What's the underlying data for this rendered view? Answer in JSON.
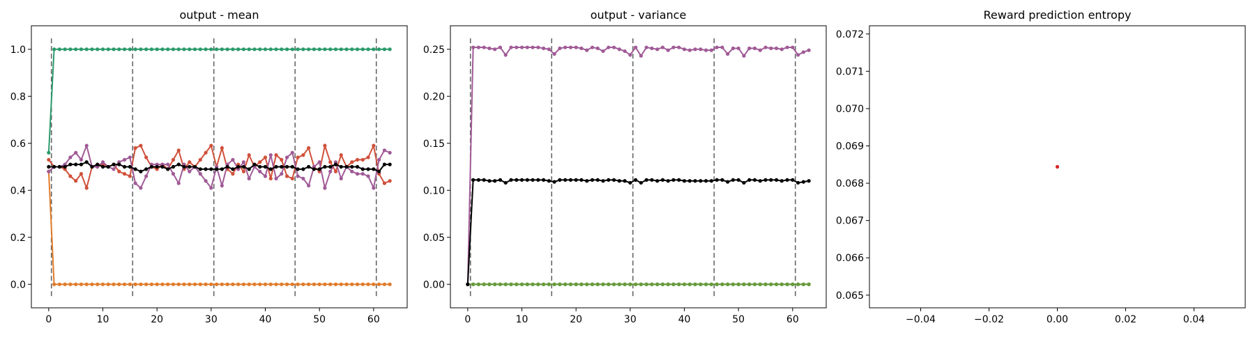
{
  "panels": [
    {
      "title": "output - mean",
      "chart_data": {
        "type": "line",
        "title": "output - mean",
        "xlabel": "",
        "ylabel": "",
        "xlim": [
          -3.2,
          66.2
        ],
        "ylim": [
          -0.1,
          1.1
        ],
        "xticks": [
          0,
          10,
          20,
          30,
          40,
          50,
          60
        ],
        "yticks": [
          0.0,
          0.2,
          0.4,
          0.6,
          0.8,
          1.0
        ],
        "ytick_labels": [
          "0.0",
          "0.2",
          "0.4",
          "0.6",
          "0.8",
          "1.0"
        ],
        "vlines": {
          "x": [
            0.5,
            15.5,
            30.5,
            45.5,
            60.5
          ],
          "y_range": [
            -0.05,
            1.05
          ],
          "color": "#666666",
          "style": "dashed"
        },
        "series": [
          {
            "color": "#2a9a6a",
            "values": [
              0.56,
              1,
              1,
              1,
              1,
              1,
              1,
              1,
              1,
              1,
              1,
              1,
              1,
              1,
              1,
              1,
              1,
              1,
              1,
              1,
              1,
              1,
              1,
              1,
              1,
              1,
              1,
              1,
              1,
              1,
              1,
              1,
              1,
              1,
              1,
              1,
              1,
              1,
              1,
              1,
              1,
              1,
              1,
              1,
              1,
              1,
              1,
              1,
              1,
              1,
              1,
              1,
              1,
              1,
              1,
              1,
              1,
              1,
              1,
              1,
              1,
              1,
              1,
              1
            ]
          },
          {
            "color": "#e07b2a",
            "values": [
              0.48,
              0,
              0,
              0,
              0,
              0,
              0,
              0,
              0,
              0,
              0,
              0,
              0,
              0,
              0,
              0,
              0,
              0,
              0,
              0,
              0,
              0,
              0,
              0,
              0,
              0,
              0,
              0,
              0,
              0,
              0,
              0,
              0,
              0,
              0,
              0,
              0,
              0,
              0,
              0,
              0,
              0,
              0,
              0,
              0,
              0,
              0,
              0,
              0,
              0,
              0,
              0,
              0,
              0,
              0,
              0,
              0,
              0,
              0,
              0,
              0,
              0,
              0,
              0
            ]
          },
          {
            "color": "#d0503a",
            "values": [
              0.53,
              0.5,
              0.5,
              0.49,
              0.46,
              0.44,
              0.47,
              0.41,
              0.5,
              0.5,
              0.51,
              0.5,
              0.51,
              0.48,
              0.47,
              0.46,
              0.58,
              0.59,
              0.54,
              0.5,
              0.49,
              0.51,
              0.49,
              0.53,
              0.57,
              0.49,
              0.52,
              0.5,
              0.53,
              0.56,
              0.59,
              0.5,
              0.58,
              0.49,
              0.47,
              0.51,
              0.48,
              0.55,
              0.5,
              0.52,
              0.54,
              0.45,
              0.55,
              0.53,
              0.46,
              0.45,
              0.54,
              0.55,
              0.58,
              0.5,
              0.48,
              0.59,
              0.52,
              0.48,
              0.55,
              0.5,
              0.52,
              0.53,
              0.53,
              0.54,
              0.59,
              0.47,
              0.43,
              0.44
            ]
          },
          {
            "color": "#a05a96",
            "values": [
              0.48,
              0.5,
              0.5,
              0.51,
              0.54,
              0.56,
              0.53,
              0.59,
              0.5,
              0.5,
              0.52,
              0.5,
              0.49,
              0.52,
              0.53,
              0.54,
              0.43,
              0.41,
              0.46,
              0.51,
              0.51,
              0.51,
              0.51,
              0.47,
              0.43,
              0.51,
              0.48,
              0.5,
              0.47,
              0.44,
              0.41,
              0.5,
              0.42,
              0.51,
              0.53,
              0.49,
              0.52,
              0.45,
              0.5,
              0.48,
              0.46,
              0.55,
              0.45,
              0.47,
              0.54,
              0.56,
              0.46,
              0.45,
              0.42,
              0.5,
              0.52,
              0.41,
              0.48,
              0.52,
              0.45,
              0.5,
              0.48,
              0.47,
              0.47,
              0.46,
              0.41,
              0.53,
              0.57,
              0.56
            ]
          },
          {
            "color": "#000000",
            "values": [
              0.5,
              0.5,
              0.5,
              0.5,
              0.51,
              0.51,
              0.51,
              0.52,
              0.5,
              0.51,
              0.5,
              0.5,
              0.51,
              0.51,
              0.5,
              0.5,
              0.49,
              0.48,
              0.49,
              0.5,
              0.5,
              0.5,
              0.49,
              0.5,
              0.51,
              0.5,
              0.5,
              0.5,
              0.49,
              0.49,
              0.49,
              0.49,
              0.49,
              0.5,
              0.49,
              0.5,
              0.5,
              0.49,
              0.51,
              0.5,
              0.5,
              0.49,
              0.5,
              0.5,
              0.5,
              0.5,
              0.49,
              0.49,
              0.5,
              0.49,
              0.49,
              0.5,
              0.5,
              0.51,
              0.5,
              0.5,
              0.5,
              0.5,
              0.49,
              0.49,
              0.49,
              0.48,
              0.51,
              0.51
            ]
          }
        ]
      }
    },
    {
      "title": "output - variance",
      "chart_data": {
        "type": "line",
        "title": "output - variance",
        "xlabel": "",
        "ylabel": "",
        "xlim": [
          -3.2,
          66.2
        ],
        "ylim": [
          -0.025,
          0.275
        ],
        "xticks": [
          0,
          10,
          20,
          30,
          40,
          50,
          60
        ],
        "yticks": [
          0.0,
          0.05,
          0.1,
          0.15,
          0.2,
          0.25
        ],
        "ytick_labels": [
          "0.00",
          "0.05",
          "0.10",
          "0.15",
          "0.20",
          "0.25"
        ],
        "vlines": {
          "x": [
            0.5,
            15.5,
            30.5,
            45.5,
            60.5
          ],
          "y_range": [
            -0.0125,
            0.2625
          ],
          "color": "#666666",
          "style": "dashed"
        },
        "series": [
          {
            "color": "#2a9a6a",
            "values": [
              0,
              0,
              0,
              0,
              0,
              0,
              0,
              0,
              0,
              0,
              0,
              0,
              0,
              0,
              0,
              0,
              0,
              0,
              0,
              0,
              0,
              0,
              0,
              0,
              0,
              0,
              0,
              0,
              0,
              0,
              0,
              0,
              0,
              0,
              0,
              0,
              0,
              0,
              0,
              0,
              0,
              0,
              0,
              0,
              0,
              0,
              0,
              0,
              0,
              0,
              0,
              0,
              0,
              0,
              0,
              0,
              0,
              0,
              0,
              0,
              0,
              0,
              0,
              0
            ]
          },
          {
            "color": "#6a9a3a",
            "values": [
              0,
              0,
              0,
              0,
              0,
              0,
              0,
              0,
              0,
              0,
              0,
              0,
              0,
              0,
              0,
              0,
              0,
              0,
              0,
              0,
              0,
              0,
              0,
              0,
              0,
              0,
              0,
              0,
              0,
              0,
              0,
              0,
              0,
              0,
              0,
              0,
              0,
              0,
              0,
              0,
              0,
              0,
              0,
              0,
              0,
              0,
              0,
              0,
              0,
              0,
              0,
              0,
              0,
              0,
              0,
              0,
              0,
              0,
              0,
              0,
              0,
              0,
              0,
              0
            ]
          },
          {
            "color": "#a05a96",
            "values": [
              0.0,
              0.252,
              0.252,
              0.252,
              0.251,
              0.25,
              0.252,
              0.244,
              0.252,
              0.252,
              0.252,
              0.252,
              0.252,
              0.252,
              0.251,
              0.25,
              0.245,
              0.251,
              0.252,
              0.252,
              0.252,
              0.251,
              0.249,
              0.252,
              0.251,
              0.248,
              0.252,
              0.252,
              0.25,
              0.248,
              0.244,
              0.252,
              0.243,
              0.252,
              0.251,
              0.25,
              0.252,
              0.249,
              0.252,
              0.252,
              0.25,
              0.249,
              0.25,
              0.25,
              0.249,
              0.249,
              0.252,
              0.252,
              0.245,
              0.251,
              0.251,
              0.243,
              0.251,
              0.251,
              0.249,
              0.252,
              0.251,
              0.251,
              0.25,
              0.252,
              0.252,
              0.244,
              0.247,
              0.249
            ]
          },
          {
            "color": "#000000",
            "values": [
              0.0,
              0.111,
              0.111,
              0.111,
              0.11,
              0.11,
              0.111,
              0.108,
              0.111,
              0.111,
              0.111,
              0.111,
              0.111,
              0.111,
              0.111,
              0.11,
              0.109,
              0.111,
              0.111,
              0.111,
              0.111,
              0.111,
              0.11,
              0.111,
              0.111,
              0.11,
              0.111,
              0.111,
              0.11,
              0.11,
              0.108,
              0.111,
              0.108,
              0.111,
              0.111,
              0.11,
              0.111,
              0.11,
              0.111,
              0.111,
              0.11,
              0.11,
              0.11,
              0.11,
              0.11,
              0.11,
              0.111,
              0.111,
              0.109,
              0.111,
              0.111,
              0.108,
              0.111,
              0.111,
              0.11,
              0.111,
              0.111,
              0.111,
              0.11,
              0.111,
              0.111,
              0.108,
              0.109,
              0.11
            ]
          }
        ]
      }
    },
    {
      "title": "Reward prediction entropy",
      "chart_data": {
        "type": "scatter",
        "title": "Reward prediction entropy",
        "xlabel": "",
        "ylabel": "",
        "xlim": [
          -0.055,
          0.055
        ],
        "ylim": [
          0.06466,
          0.07222
        ],
        "xticks": [
          -0.04,
          -0.02,
          0.0,
          0.02,
          0.04
        ],
        "xtick_labels": [
          "−0.04",
          "−0.02",
          "0.00",
          "0.02",
          "0.04"
        ],
        "yticks": [
          0.065,
          0.066,
          0.067,
          0.068,
          0.069,
          0.07,
          0.071,
          0.072
        ],
        "ytick_labels": [
          "0.065",
          "0.066",
          "0.067",
          "0.068",
          "0.069",
          "0.070",
          "0.071",
          "0.072"
        ],
        "series": [
          {
            "color": "#d62728",
            "points": [
              [
                0.0,
                0.06844
              ]
            ]
          }
        ]
      }
    }
  ]
}
